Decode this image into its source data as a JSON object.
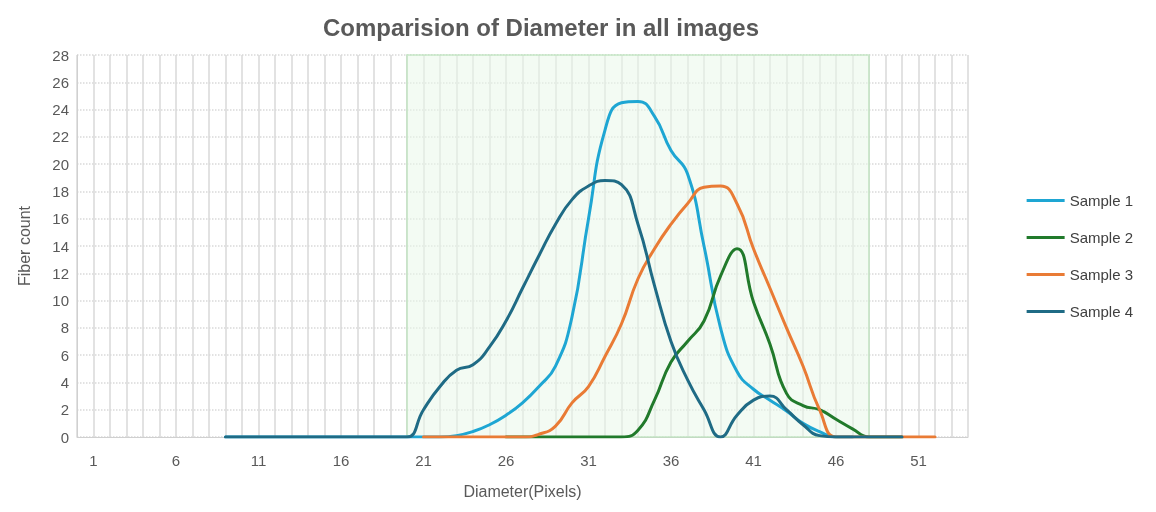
{
  "chart_data": {
    "type": "line",
    "title": "Comparision of Diameter in all images",
    "xlabel": "Diameter(Pixels)",
    "ylabel": "Fiber count",
    "x": [
      9,
      10,
      11,
      12,
      13,
      14,
      15,
      16,
      17,
      18,
      19,
      20,
      21,
      22,
      23,
      24,
      25,
      26,
      27,
      28,
      29,
      30,
      31,
      32,
      33,
      34,
      35,
      36,
      37,
      38,
      39,
      40,
      41,
      42,
      43,
      44,
      45,
      46,
      47,
      48,
      49,
      50,
      51,
      52
    ],
    "series": [
      {
        "name": "Sample 1",
        "color": "#1ea6d3",
        "values": [
          0,
          0,
          0,
          0,
          0,
          0,
          0,
          0,
          0,
          0,
          0,
          0,
          0,
          0,
          0.1,
          0.4,
          0.9,
          1.6,
          2.5,
          3.7,
          5.2,
          8.8,
          16,
          22.5,
          24.5,
          24.6,
          23.5,
          21,
          19.3,
          14,
          8,
          4.8,
          3.5,
          2.7,
          1.9,
          1,
          0.4,
          0,
          0,
          null,
          null,
          null,
          null,
          null
        ]
      },
      {
        "name": "Sample 2",
        "color": "#217a2b",
        "values": [
          null,
          null,
          null,
          null,
          null,
          null,
          null,
          null,
          null,
          null,
          null,
          null,
          null,
          null,
          null,
          null,
          null,
          0,
          0,
          0,
          0,
          0,
          0,
          0,
          0,
          0.5,
          2.7,
          5.5,
          7,
          8.5,
          11.8,
          13.8,
          9.9,
          6.8,
          3.2,
          2.3,
          2,
          1.3,
          0.6,
          0,
          0,
          0,
          null,
          null
        ]
      },
      {
        "name": "Sample 3",
        "color": "#e97b35",
        "values": [
          null,
          null,
          null,
          null,
          null,
          null,
          null,
          null,
          null,
          null,
          null,
          null,
          0,
          0,
          0,
          0,
          0,
          0,
          0,
          0.2,
          0.8,
          2.5,
          3.7,
          5.9,
          8.3,
          11.6,
          13.8,
          15.6,
          17.1,
          18.3,
          18.4,
          17.1,
          13.8,
          10.9,
          8,
          5.2,
          2,
          0,
          0,
          0,
          0,
          0,
          0,
          0
        ]
      },
      {
        "name": "Sample 4",
        "color": "#1f6b85",
        "values": [
          0,
          0,
          0,
          0,
          0,
          0,
          0,
          0,
          0,
          0,
          0,
          0,
          2,
          3.7,
          4.9,
          5.3,
          6.6,
          8.5,
          10.9,
          13.3,
          15.6,
          17.4,
          18.4,
          18.8,
          18.5,
          15.6,
          11.1,
          7,
          4.2,
          2,
          0,
          1.6,
          2.7,
          3,
          2,
          0.9,
          0.1,
          0,
          0,
          0,
          0,
          0,
          null,
          null
        ]
      }
    ],
    "xlim": [
      0,
      54
    ],
    "xticks": [
      {
        "value": 0,
        "label": null
      },
      1,
      {
        "value": 2,
        "label": null
      },
      {
        "value": 3,
        "label": null
      },
      {
        "value": 4,
        "label": null
      },
      {
        "value": 5,
        "label": null
      },
      6,
      {
        "value": 7,
        "label": null
      },
      {
        "value": 8,
        "label": null
      },
      {
        "value": 9,
        "label": null
      },
      {
        "value": 10,
        "label": null
      },
      11,
      {
        "value": 12,
        "label": null
      },
      {
        "value": 13,
        "label": null
      },
      {
        "value": 14,
        "label": null
      },
      {
        "value": 15,
        "label": null
      },
      16,
      {
        "value": 17,
        "label": null
      },
      {
        "value": 18,
        "label": null
      },
      {
        "value": 19,
        "label": null
      },
      {
        "value": 20,
        "label": null
      },
      21,
      {
        "value": 22,
        "label": null
      },
      {
        "value": 23,
        "label": null
      },
      {
        "value": 24,
        "label": null
      },
      {
        "value": 25,
        "label": null
      },
      26,
      {
        "value": 27,
        "label": null
      },
      {
        "value": 28,
        "label": null
      },
      {
        "value": 29,
        "label": null
      },
      {
        "value": 30,
        "label": null
      },
      31,
      {
        "value": 32,
        "label": null
      },
      {
        "value": 33,
        "label": null
      },
      {
        "value": 34,
        "label": null
      },
      {
        "value": 35,
        "label": null
      },
      36,
      {
        "value": 37,
        "label": null
      },
      {
        "value": 38,
        "label": null
      },
      {
        "value": 39,
        "label": null
      },
      {
        "value": 40,
        "label": null
      },
      41,
      {
        "value": 42,
        "label": null
      },
      {
        "value": 43,
        "label": null
      },
      {
        "value": 44,
        "label": null
      },
      {
        "value": 45,
        "label": null
      },
      46,
      {
        "value": 47,
        "label": null
      },
      {
        "value": 48,
        "label": null
      },
      {
        "value": 49,
        "label": null
      },
      {
        "value": 50,
        "label": null
      },
      51,
      {
        "value": 52,
        "label": null
      },
      {
        "value": 53,
        "label": null
      },
      {
        "value": 54,
        "label": null
      }
    ],
    "ylim": [
      0,
      28
    ],
    "yticks": [
      0,
      2,
      4,
      6,
      8,
      10,
      12,
      14,
      16,
      18,
      20,
      22,
      24,
      26,
      28
    ],
    "bands": [
      {
        "axis": "x",
        "from": 20,
        "to": 48,
        "color": "#eaf7ea"
      }
    ],
    "grid": true,
    "legend": "right"
  }
}
